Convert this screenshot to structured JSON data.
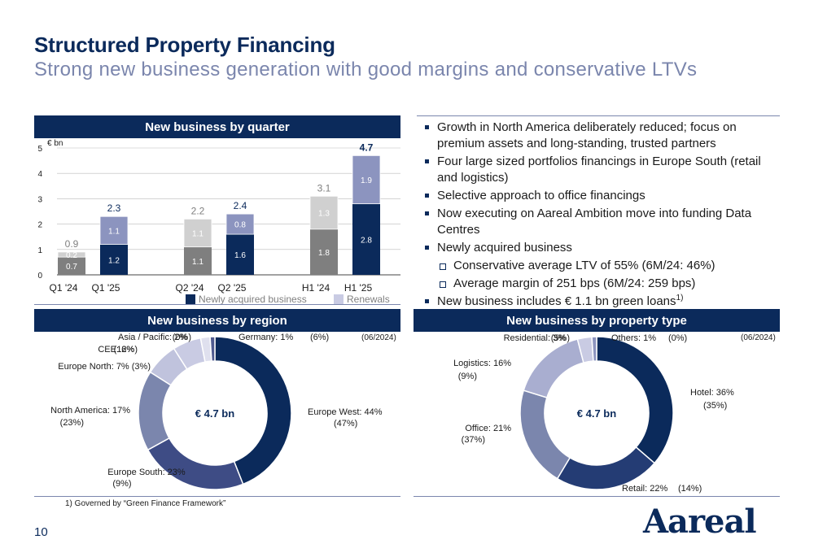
{
  "header": {
    "title": "Structured Property Financing",
    "subtitle": "Strong new business generation with good margins and conservative LTVs"
  },
  "quarter_panel": {
    "heading": "New business by quarter"
  },
  "region_panel": {
    "heading": "New business by region",
    "date_note": "(06/2024)",
    "center_label": "€ 4.7 bn"
  },
  "property_panel": {
    "heading": "New business by property type",
    "date_note": "(06/2024)",
    "center_label": "€ 4.7 bn"
  },
  "bullets": {
    "b1": "Growth in North America deliberately reduced; focus on premium assets and long-standing, trusted partners",
    "b2": "Four large sized portfolios financings in Europe South (retail and logistics)",
    "b3": "Selective approach to office financings",
    "b4": "Now executing on Aareal Ambition move into funding Data Centres",
    "b5": "Newly acquired business",
    "s1": "Conservative average LTV of 55% (6M/24: 46%)",
    "s2": "Average margin of 251 bps (6M/24: 259 bps)",
    "b6": "New business includes € 1.1 bn green loans",
    "b6_sup": "1)"
  },
  "footnote": "1)   Governed by “Green Finance Framework”",
  "page_number": "10",
  "logo_text": "Aareal",
  "colors": {
    "navy": "#0b2a5b",
    "lavender": "#c9cbe3",
    "grey": "#7f7f7f",
    "lightgrey": "#d0d0d0",
    "midblue": "#8c94bf"
  },
  "chart_data": [
    {
      "type": "bar",
      "stacked": true,
      "unit_label": "€ bn",
      "ylim": [
        0,
        5
      ],
      "yticks": [
        "0",
        "1",
        "2",
        "3",
        "4",
        "5"
      ],
      "categories": [
        "Q1 '24",
        "Q1 '25",
        "Q2 '24",
        "Q2 '25",
        "H1 '24",
        "H1 '25"
      ],
      "series": [
        {
          "name": "Newly acquired business",
          "values": [
            0.7,
            1.2,
            1.1,
            1.6,
            1.8,
            2.8
          ],
          "labels": [
            "0.7",
            "1.2",
            "1.1",
            "1.6",
            "1.8",
            "2.8"
          ]
        },
        {
          "name": "Renewals",
          "values": [
            0.2,
            1.1,
            1.1,
            0.8,
            1.3,
            1.9
          ],
          "labels": [
            "0.2",
            "1.1",
            "1.1",
            "0.8",
            "1.3",
            "1.9"
          ]
        }
      ],
      "totals": [
        "0.9",
        "2.3",
        "2.2",
        "2.4",
        "3.1",
        "4.7"
      ],
      "legend_position": "bottom"
    },
    {
      "type": "pie",
      "title": "New business by region",
      "center_label": "€ 4.7 bn",
      "slices": [
        {
          "name": "Europe West",
          "value": 44,
          "label": "Europe West: 44%",
          "prior": "(47%)"
        },
        {
          "name": "Europe South",
          "value": 23,
          "label": "Europe South: 23%",
          "prior": "(9%)"
        },
        {
          "name": "North America",
          "value": 17,
          "label": "North America: 17%",
          "prior": "(23%)"
        },
        {
          "name": "Europe North",
          "value": 7,
          "label": "Europe North:  7% (3%)",
          "prior": ""
        },
        {
          "name": "CEE",
          "value": 6,
          "label": "CEE:  6%",
          "prior": "(12%)"
        },
        {
          "name": "Asia / Pacific",
          "value": 2,
          "label": "Asia / Pacific: 2%",
          "prior": "(0%)"
        },
        {
          "name": "Germany",
          "value": 1,
          "label": "Germany:  1%",
          "prior": "(6%)"
        }
      ]
    },
    {
      "type": "pie",
      "title": "New business by property type",
      "center_label": "€ 4.7 bn",
      "slices": [
        {
          "name": "Hotel",
          "value": 36,
          "label": "Hotel:  36%",
          "prior": "(35%)"
        },
        {
          "name": "Retail",
          "value": 22,
          "label": "Retail:  22%",
          "prior": "(14%)"
        },
        {
          "name": "Office",
          "value": 21,
          "label": "Office:  21%",
          "prior": "(37%)"
        },
        {
          "name": "Logistics",
          "value": 16,
          "label": "Logistics:  16%",
          "prior": "(9%)"
        },
        {
          "name": "Residential",
          "value": 3,
          "label": "Residential:  3%",
          "prior": "(5%)"
        },
        {
          "name": "Others",
          "value": 1,
          "label": "Others:  1%",
          "prior": "(0%)"
        }
      ]
    }
  ]
}
